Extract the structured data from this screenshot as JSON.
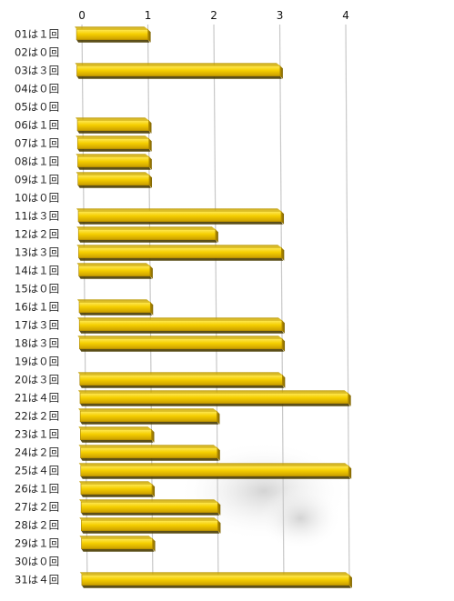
{
  "chart_data": {
    "type": "bar",
    "orientation": "horizontal",
    "axis_position": "top",
    "grid": true,
    "xlim": [
      0,
      4
    ],
    "x_ticks": [
      "0",
      "1",
      "2",
      "3",
      "4"
    ],
    "categories": [
      "01は１回",
      "02は０回",
      "03は３回",
      "04は０回",
      "05は０回",
      "06は１回",
      "07は１回",
      "08は１回",
      "09は１回",
      "10は０回",
      "11は３回",
      "12は２回",
      "13は３回",
      "14は１回",
      "15は０回",
      "16は１回",
      "17は３回",
      "18は３回",
      "19は０回",
      "20は３回",
      "21は４回",
      "22は２回",
      "23は１回",
      "24は２回",
      "25は４回",
      "26は１回",
      "27は２回",
      "28は２回",
      "29は１回",
      "30は０回",
      "31は４回"
    ],
    "values": [
      1,
      0,
      3,
      0,
      0,
      1,
      1,
      1,
      1,
      0,
      3,
      2,
      3,
      1,
      0,
      1,
      3,
      3,
      0,
      3,
      4,
      2,
      1,
      2,
      4,
      1,
      2,
      2,
      1,
      0,
      4
    ],
    "bar_color": "#f2cc00",
    "bar_shadow_color": "#5a4a00"
  }
}
